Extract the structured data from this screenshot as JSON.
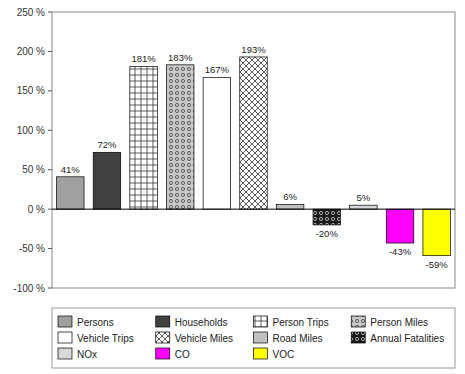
{
  "chart_data": {
    "type": "bar",
    "categories": [
      "Persons",
      "Households",
      "Person Trips",
      "Person Miles",
      "Vehicle Trips",
      "Vehicle Miles",
      "Road Miles",
      "Annual Fatalities",
      "NOx",
      "CO",
      "VOC"
    ],
    "values": [
      41,
      72,
      181,
      183,
      167,
      193,
      6,
      -20,
      5,
      -43,
      -59
    ],
    "value_labels": [
      "41%",
      "72%",
      "181%",
      "183%",
      "167%",
      "193%",
      "6%",
      "-20%",
      "5%",
      "-43%",
      "-59%"
    ],
    "colors": [
      "#a0a0a0",
      "#404040",
      "#ffffff",
      "#c8c8c8",
      "#ffffff",
      "#ffffff",
      "#c0c0c0",
      "#1a1a1a",
      "#d8d8d8",
      "#ff00ff",
      "#ffff00"
    ],
    "ylim": [
      -100,
      250
    ],
    "yticks": [
      {
        "value": -100,
        "label": "-100 %"
      },
      {
        "value": -50,
        "label": "-50 %"
      },
      {
        "value": 0,
        "label": "0 %"
      },
      {
        "value": 50,
        "label": "50 %"
      },
      {
        "value": 100,
        "label": "100 %"
      },
      {
        "value": 150,
        "label": "150 %"
      },
      {
        "value": 200,
        "label": "200 %"
      },
      {
        "value": 250,
        "label": "250 %"
      }
    ],
    "data_labels": true,
    "tick_labels": "y",
    "legend": "bottom",
    "grid": false
  }
}
